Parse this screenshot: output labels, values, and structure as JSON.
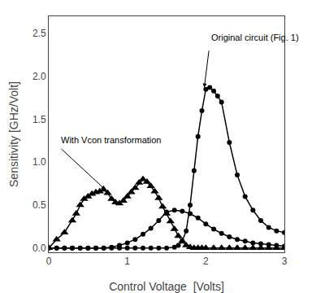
{
  "chart_data": {
    "type": "line",
    "xlabel": "Control Voltage  [Volts]",
    "ylabel": "Sensitivity [GHz/Volt]",
    "xlim": [
      0,
      3
    ],
    "ylim": [
      -0.05,
      2.7
    ],
    "xticks": [
      0,
      1,
      2,
      3
    ],
    "yticks": [
      {
        "value": 0.0,
        "label": "0.0"
      },
      0.5,
      {
        "value": 1.0,
        "label": "1.0"
      },
      1.5,
      {
        "value": 2.0,
        "label": "2.0"
      },
      2.5
    ],
    "grid": false,
    "series": [
      {
        "color": "#000000",
        "marker": "circle",
        "x": [
          0.0,
          0.1,
          0.2,
          0.3,
          0.4,
          0.5,
          0.6,
          0.7,
          0.8,
          0.9,
          1.0,
          1.1,
          1.2,
          1.3,
          1.4,
          1.5,
          1.6,
          1.7,
          1.8,
          1.9,
          2.0,
          2.1,
          2.2,
          2.3,
          2.4,
          2.5,
          2.6,
          2.7,
          2.8,
          2.9,
          3.0
        ],
        "values": [
          0.0,
          0.0,
          0.0,
          0.0,
          0.0,
          0.0,
          0.0,
          0.0,
          0.01,
          0.03,
          0.06,
          0.1,
          0.16,
          0.23,
          0.32,
          0.42,
          0.44,
          0.43,
          0.4,
          0.35,
          0.28,
          0.22,
          0.17,
          0.13,
          0.1,
          0.08,
          0.06,
          0.05,
          0.04,
          0.03,
          0.02
        ]
      },
      {
        "color": "#000000",
        "marker": "circle",
        "x": [
          0.0,
          0.1,
          0.2,
          0.3,
          0.4,
          0.5,
          0.6,
          0.7,
          0.8,
          0.9,
          1.0,
          1.1,
          1.2,
          1.3,
          1.4,
          1.5,
          1.6,
          1.65,
          1.7,
          1.75,
          1.8,
          1.85,
          1.9,
          1.95,
          2.0,
          2.05,
          2.1,
          2.15,
          2.2,
          2.3,
          2.4,
          2.5,
          2.6,
          2.7,
          2.8,
          2.9,
          3.0
        ],
        "values": [
          0.0,
          0.0,
          0.0,
          0.0,
          0.0,
          0.0,
          0.0,
          0.0,
          0.0,
          0.0,
          0.0,
          0.0,
          0.0,
          0.0,
          0.0,
          0.0,
          0.01,
          0.03,
          0.08,
          0.2,
          0.5,
          0.9,
          1.3,
          1.6,
          1.85,
          1.87,
          1.83,
          1.77,
          1.7,
          1.23,
          0.85,
          0.6,
          0.44,
          0.32,
          0.24,
          0.2,
          0.18
        ]
      },
      {
        "color": "#000000",
        "marker": "triangle",
        "x": [
          0.0,
          0.1,
          0.2,
          0.3,
          0.35,
          0.4,
          0.45,
          0.5,
          0.55,
          0.6,
          0.65,
          0.7,
          0.75,
          0.8,
          0.85,
          0.9,
          0.95,
          1.0,
          1.05,
          1.1,
          1.15,
          1.2,
          1.25,
          1.3,
          1.35,
          1.4,
          1.45,
          1.5,
          1.55,
          1.6,
          1.65,
          1.7,
          1.75,
          1.8,
          1.85,
          1.9,
          1.95,
          2.0,
          2.1,
          2.2,
          2.3,
          2.4,
          2.5,
          2.6,
          2.7,
          2.8,
          2.9,
          3.0
        ],
        "values": [
          0.0,
          0.1,
          0.18,
          0.32,
          0.4,
          0.5,
          0.57,
          0.6,
          0.63,
          0.65,
          0.66,
          0.68,
          0.64,
          0.57,
          0.53,
          0.52,
          0.55,
          0.6,
          0.65,
          0.7,
          0.76,
          0.8,
          0.77,
          0.72,
          0.66,
          0.58,
          0.48,
          0.4,
          0.31,
          0.22,
          0.14,
          0.08,
          0.03,
          0.01,
          0.0,
          0.0,
          0.0,
          0.0,
          0.0,
          0.0,
          0.0,
          0.0,
          0.0,
          0.0,
          0.0,
          0.0,
          0.0,
          0.0
        ]
      }
    ],
    "annotations": [
      {
        "text": "Original circuit (Fig. 1)",
        "x": 2.05,
        "y": 2.38,
        "arrow_x": 1.98,
        "arrow_y": 1.87
      },
      {
        "text": "With Vcon transformation",
        "x": 0.13,
        "y": 1.18,
        "arrow_x": 0.72,
        "arrow_y": 0.68
      }
    ]
  }
}
